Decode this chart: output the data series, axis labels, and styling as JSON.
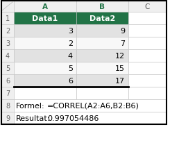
{
  "col_a_header": "Data1",
  "col_b_header": "Data2",
  "rows": [
    {
      "row": "2",
      "a": "3",
      "b": "9",
      "highlight_a": false,
      "highlight_b": false
    },
    {
      "row": "3",
      "a": "2",
      "b": "7",
      "highlight_a": false,
      "highlight_b": false
    },
    {
      "row": "4",
      "a": "4",
      "b": "12",
      "highlight_a": false,
      "highlight_b": false
    },
    {
      "row": "5",
      "a": "5",
      "b": "15",
      "highlight_a": false,
      "highlight_b": false
    },
    {
      "row": "6",
      "a": "6",
      "b": "17",
      "highlight_a": false,
      "highlight_b": false
    }
  ],
  "formula_label": "Formel:",
  "formula_value": "=CORREL(A2:A6,B2:B6)",
  "result_label": "Resultat:",
  "result_value": "0.997054486",
  "header_bg": "#217346",
  "header_fg": "#ffffff",
  "row_even_bg": "#e2e2e2",
  "row_odd_bg": "#f8f8f8",
  "cell_border_color": "#c0c0c0",
  "row_num_bg": "#efefef",
  "col_header_bg": "#efefef",
  "col_header_text": "#217346",
  "outer_border": "#000000",
  "thick_border_color": "#000000",
  "fig_bg": "#ffffff",
  "text_color": "#000000",
  "row_num_text": "#666666"
}
